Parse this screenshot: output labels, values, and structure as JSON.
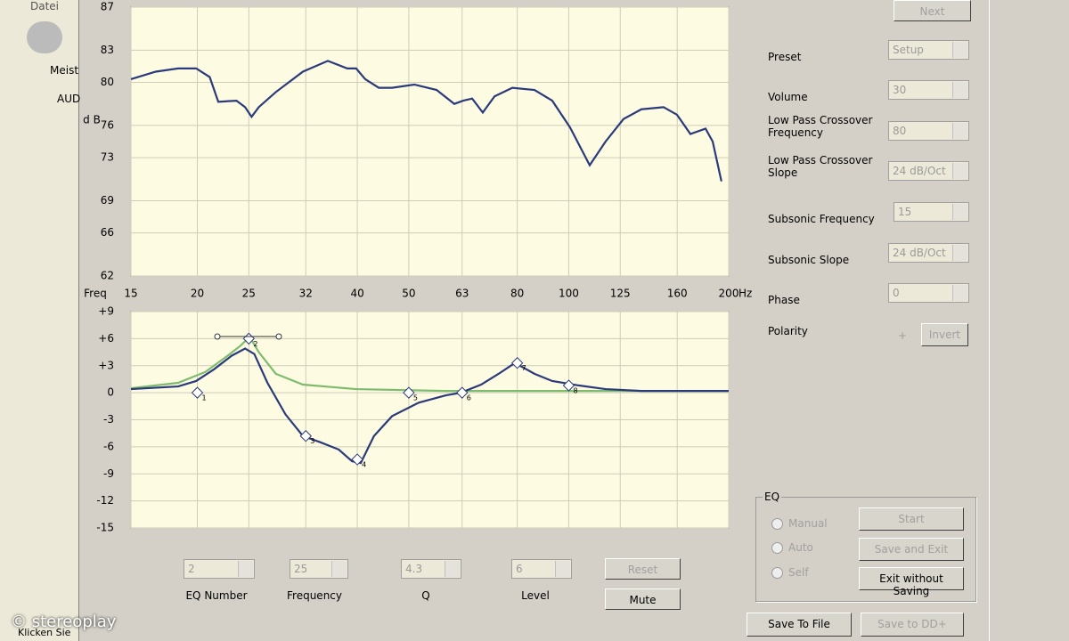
{
  "chart_data": [
    {
      "type": "line",
      "ylabel": "d B",
      "xlabel": "Freq",
      "xunit": "Hz",
      "log_x": true,
      "xlim": [
        15,
        200
      ],
      "xticks": [
        15,
        20,
        25,
        32,
        40,
        50,
        63,
        80,
        100,
        125,
        160,
        200
      ],
      "ylim": [
        62,
        87
      ],
      "yticks": [
        62,
        66,
        69,
        73,
        76,
        80,
        83,
        87
      ],
      "grid": true,
      "series": [
        {
          "color": "#2b3a7a",
          "x": [
            15,
            16.7,
            18.4,
            19.9,
            21.1,
            21.9,
            23.7,
            24.6,
            25.3,
            26.1,
            28.1,
            31.6,
            35.2,
            38.3,
            39.8,
            41.4,
            43.9,
            46.5,
            51.2,
            56.4,
            60.9,
            63.3,
            65.8,
            68.9,
            72.5,
            78.3,
            86.2,
            93.1,
            100.6,
            109.5,
            117.3,
            126.8,
            137,
            150.8,
            159.8,
            169.4,
            180.9,
            186.6,
            193.8
          ],
          "values": [
            80.3,
            81,
            81.3,
            81.3,
            80.5,
            78.2,
            78.3,
            77.7,
            76.8,
            77.7,
            79.1,
            81,
            82,
            81.3,
            81.3,
            80.3,
            79.5,
            79.5,
            79.8,
            79.3,
            78,
            78.3,
            78.5,
            77.2,
            78.7,
            79.5,
            79.3,
            78.3,
            75.8,
            72.3,
            74.5,
            76.6,
            77.5,
            77.7,
            77,
            75.2,
            75.7,
            74.5,
            70.8
          ]
        }
      ]
    },
    {
      "type": "line",
      "log_x": true,
      "xlim": [
        15,
        200
      ],
      "ylim": [
        -15,
        9
      ],
      "yticks": [
        {
          "value": 9,
          "label": "+9"
        },
        {
          "value": 6,
          "label": "+6"
        },
        {
          "value": 3,
          "label": "+3"
        },
        0,
        -3,
        -6,
        -9,
        -12,
        -15
      ],
      "grid": true,
      "series": [
        {
          "color": "#7dbb6e",
          "x": [
            15,
            18.4,
            20.7,
            22.8,
            24.1,
            25.1,
            26.1,
            28.1,
            31.6,
            39.8,
            58.6,
            200
          ],
          "values": [
            0.5,
            1.1,
            2.3,
            4.1,
            5.2,
            6.2,
            4.5,
            2.1,
            0.9,
            0.4,
            0.2,
            0.2
          ]
        },
        {
          "color": "#2b3a7a",
          "x": [
            15,
            18.4,
            19.9,
            21.5,
            23.2,
            24.6,
            25.6,
            27.1,
            29.3,
            31.6,
            34.1,
            36.9,
            39.1,
            40.6,
            43,
            46.5,
            52.2,
            58.6,
            62.6,
            68.4,
            73.8,
            79.2,
            86.2,
            93.1,
            104.6,
            117.3,
            137,
            200
          ],
          "values": [
            0.4,
            0.7,
            1.3,
            2.6,
            4.1,
            4.9,
            4.3,
            1.1,
            -2.4,
            -4.8,
            -5.5,
            -6.3,
            -7.6,
            -7.8,
            -4.8,
            -2.6,
            -1.1,
            -0.3,
            0,
            0.9,
            2.1,
            3.3,
            2.1,
            1.3,
            0.8,
            0.4,
            0.2,
            0.2
          ]
        }
      ],
      "markers": {
        "x": [
          20,
          25,
          32,
          40,
          50,
          63,
          80,
          100
        ],
        "values": [
          0,
          6,
          -4.8,
          -7.4,
          0,
          0,
          3.3,
          0.8
        ],
        "labels": [
          "1",
          "2",
          "3",
          "4",
          "5",
          "6",
          "7",
          "8"
        ]
      }
    }
  ],
  "ui": {
    "menu": "Datei",
    "sidebar": [
      "Meist",
      "AUD"
    ],
    "status": "Klicken Sie",
    "watermark": "© stereoplay",
    "next": "Next",
    "settings": [
      {
        "label": "Preset",
        "value": "Setup"
      },
      {
        "label": "Volume",
        "value": "30"
      },
      {
        "label": "Low Pass Crossover Frequency",
        "value": "80"
      },
      {
        "label": "Low Pass Crossover Slope",
        "value": "24 dB/Oct"
      },
      {
        "label": "Subsonic Frequency",
        "value": "15"
      },
      {
        "label": "Subsonic Slope",
        "value": "24 dB/Oct"
      },
      {
        "label": "Phase",
        "value": "0"
      }
    ],
    "polarity": {
      "label": "Polarity",
      "value": "+",
      "button": "Invert"
    },
    "eq_group": {
      "title": "EQ",
      "modes": [
        "Manual",
        "Auto",
        "Self"
      ],
      "buttons": [
        "Start",
        "Save and Exit",
        "Exit without Saving"
      ]
    },
    "eq_controls": [
      {
        "label": "EQ Number",
        "value": "2"
      },
      {
        "label": "Frequency",
        "value": "25"
      },
      {
        "label": "Q",
        "value": "4.3"
      },
      {
        "label": "Level",
        "value": "6"
      }
    ],
    "reset": "Reset",
    "mute": "Mute",
    "save_file": "Save To File",
    "save_dd": "Save to DD+"
  }
}
